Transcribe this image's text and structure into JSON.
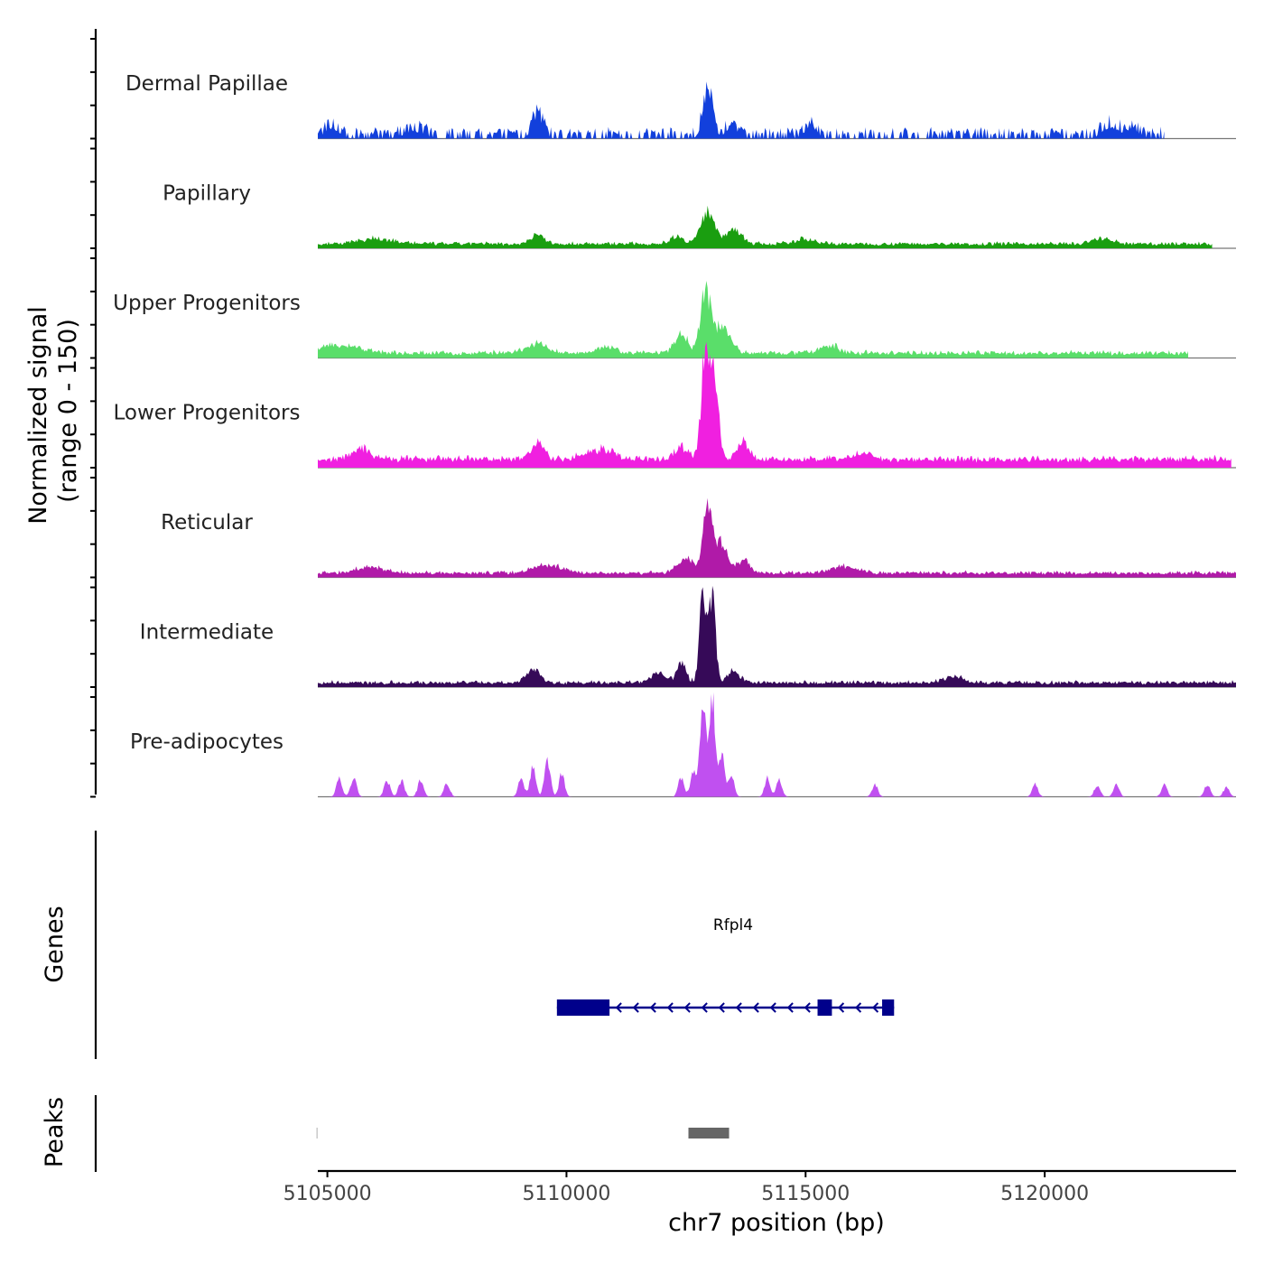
{
  "chart_data": {
    "type": "area",
    "title": "",
    "ylabel": [
      "Normalized signal",
      "(range 0 - 150)"
    ],
    "xlabel": "chr7 position (bp)",
    "xlim": [
      5104800,
      5124000
    ],
    "xticks": [
      5105000,
      5110000,
      5115000,
      5120000
    ],
    "xtick_labels": [
      "5105000",
      "5110000",
      "5115000",
      "5120000"
    ],
    "ylim": [
      0,
      150
    ],
    "tracks": [
      {
        "name": "Dermal Papillae",
        "color": "#1240DC",
        "data_start": 5104800,
        "data_end": 5122500,
        "baseline": 4,
        "noise": 6,
        "gapped": true,
        "peaks": [
          [
            5105100,
            150,
            10
          ],
          [
            5106800,
            200,
            8
          ],
          [
            5109400,
            110,
            24
          ],
          [
            5112950,
            100,
            46
          ],
          [
            5113450,
            120,
            12
          ],
          [
            5115100,
            120,
            12
          ],
          [
            5121350,
            150,
            12
          ],
          [
            5121800,
            150,
            10
          ]
        ]
      },
      {
        "name": "Papillary",
        "color": "#1A9E10",
        "data_start": 5104800,
        "data_end": 5123500,
        "baseline": 3,
        "noise": 3,
        "gapped": false,
        "peaks": [
          [
            5106000,
            400,
            5
          ],
          [
            5109400,
            150,
            9
          ],
          [
            5112300,
            120,
            8
          ],
          [
            5112950,
            150,
            30
          ],
          [
            5113500,
            160,
            15
          ],
          [
            5115000,
            200,
            5
          ],
          [
            5121200,
            200,
            5
          ]
        ]
      },
      {
        "name": "Upper Progenitors",
        "color": "#5ADE6A",
        "data_start": 5104800,
        "data_end": 5123000,
        "baseline": 3,
        "noise": 4,
        "gapped": false,
        "peaks": [
          [
            5105300,
            400,
            8
          ],
          [
            5109400,
            200,
            10
          ],
          [
            5110800,
            200,
            7
          ],
          [
            5112400,
            140,
            18
          ],
          [
            5112900,
            100,
            60
          ],
          [
            5113250,
            170,
            28
          ],
          [
            5115500,
            200,
            7
          ]
        ]
      },
      {
        "name": "Lower Progenitors",
        "color": "#F020E0",
        "data_start": 5104800,
        "data_end": 5123900,
        "baseline": 6,
        "noise": 5,
        "gapped": false,
        "peaks": [
          [
            5105700,
            200,
            10
          ],
          [
            5109400,
            130,
            18
          ],
          [
            5110700,
            300,
            10
          ],
          [
            5112400,
            150,
            12
          ],
          [
            5112900,
            80,
            105
          ],
          [
            5113100,
            80,
            85
          ],
          [
            5113700,
            120,
            18
          ],
          [
            5116200,
            200,
            6
          ]
        ]
      },
      {
        "name": "Reticular",
        "color": "#B01AA8",
        "data_start": 5104800,
        "data_end": 5124000,
        "baseline": 3,
        "noise": 3,
        "gapped": false,
        "peaks": [
          [
            5105900,
            300,
            6
          ],
          [
            5109600,
            300,
            8
          ],
          [
            5112500,
            180,
            14
          ],
          [
            5112950,
            90,
            70
          ],
          [
            5113250,
            120,
            32
          ],
          [
            5113700,
            140,
            12
          ],
          [
            5115800,
            250,
            6
          ]
        ]
      },
      {
        "name": "Intermediate",
        "color": "#360A58",
        "data_start": 5104800,
        "data_end": 5124000,
        "baseline": 3,
        "noise": 3,
        "gapped": false,
        "peaks": [
          [
            5109300,
            150,
            12
          ],
          [
            5111900,
            140,
            10
          ],
          [
            5112400,
            100,
            20
          ],
          [
            5112850,
            70,
            85
          ],
          [
            5113050,
            70,
            80
          ],
          [
            5113500,
            120,
            12
          ],
          [
            5118100,
            200,
            6
          ]
        ]
      },
      {
        "name": "Pre-adipocytes",
        "color": "#C050F0",
        "data_start": 5104800,
        "data_end": 5124000,
        "baseline": 0,
        "noise": 0,
        "gapped": false,
        "peaks": [
          [
            5105250,
            60,
            18
          ],
          [
            5105550,
            60,
            20
          ],
          [
            5106250,
            60,
            16
          ],
          [
            5106550,
            60,
            16
          ],
          [
            5106950,
            60,
            16
          ],
          [
            5107500,
            60,
            14
          ],
          [
            5109050,
            60,
            18
          ],
          [
            5109300,
            60,
            30
          ],
          [
            5109600,
            60,
            38
          ],
          [
            5109900,
            60,
            22
          ],
          [
            5112400,
            60,
            20
          ],
          [
            5112650,
            60,
            24
          ],
          [
            5112850,
            60,
            105
          ],
          [
            5113050,
            60,
            100
          ],
          [
            5113250,
            60,
            40
          ],
          [
            5113450,
            60,
            20
          ],
          [
            5114200,
            60,
            18
          ],
          [
            5114450,
            60,
            16
          ],
          [
            5116450,
            60,
            12
          ],
          [
            5119800,
            60,
            12
          ],
          [
            5121100,
            60,
            12
          ],
          [
            5121500,
            60,
            12
          ],
          [
            5122500,
            60,
            12
          ],
          [
            5123400,
            60,
            12
          ],
          [
            5123800,
            60,
            10
          ]
        ]
      }
    ],
    "genes": {
      "label": "Genes",
      "color": "#00008B",
      "items": [
        {
          "name": "Rfpl4",
          "strand": "-",
          "start": 5109800,
          "end": 5116850,
          "exons": [
            [
              5109800,
              5110900
            ],
            [
              5115250,
              5115550
            ],
            [
              5116600,
              5116850
            ]
          ]
        }
      ]
    },
    "peaks_track": {
      "label": "Peaks",
      "color": "#666666",
      "regions": [
        [
          5104770,
          5104800
        ],
        [
          5112550,
          5113400
        ]
      ]
    }
  }
}
